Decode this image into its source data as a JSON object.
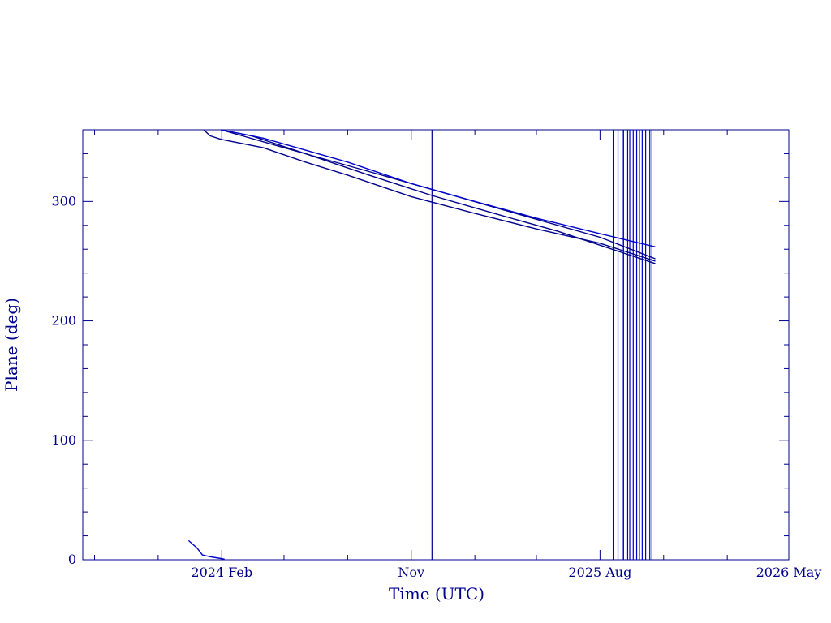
{
  "chart_data": {
    "type": "line",
    "xlabel": "Time (UTC)",
    "ylabel": "Plane (deg)",
    "xlim": [
      "2023-07-15",
      "2026-05-01"
    ],
    "ylim": [
      0,
      360
    ],
    "xticks": [
      {
        "label": "2024 Feb",
        "date": "2024-02-01"
      },
      {
        "label": "Nov",
        "date": "2024-11-01"
      },
      {
        "label": "2025 Aug",
        "date": "2025-08-01"
      },
      {
        "label": "2026 May",
        "date": "2026-05-01"
      }
    ],
    "yticks": [
      0,
      100,
      200,
      300
    ],
    "grid": false,
    "colors": {
      "axis": "#00008B",
      "series_1": "#00008B",
      "series_2": "#0000CD"
    },
    "series": [
      {
        "points": [
          [
            "2023-12-15",
            16
          ],
          [
            "2023-12-27",
            10
          ],
          [
            "2024-01-04",
            4
          ],
          [
            "2024-01-15",
            2.5
          ],
          [
            "2024-01-31",
            1
          ],
          [
            "2024-02-05",
            0.5
          ]
        ]
      },
      {
        "points": [
          [
            "2024-01-06",
            360
          ],
          [
            "2024-01-15",
            355
          ],
          [
            "2024-01-31",
            352
          ],
          [
            "2024-04-01",
            345
          ],
          [
            "2024-06-01",
            333
          ],
          [
            "2024-08-01",
            322
          ],
          [
            "2024-11-01",
            304
          ],
          [
            "2025-02-01",
            290
          ],
          [
            "2025-05-01",
            277
          ],
          [
            "2025-08-01",
            265
          ],
          [
            "2025-10-20",
            250
          ]
        ]
      },
      {
        "points": [
          [
            "2024-01-31",
            360
          ],
          [
            "2024-03-15",
            355
          ],
          [
            "2024-06-01",
            340
          ],
          [
            "2024-09-01",
            322
          ],
          [
            "2024-12-01",
            305
          ],
          [
            "2025-03-01",
            290
          ],
          [
            "2025-06-01",
            275
          ],
          [
            "2025-10-20",
            248
          ]
        ]
      },
      {
        "points": [
          [
            "2024-01-31",
            360
          ],
          [
            "2024-05-01",
            345
          ],
          [
            "2024-09-01",
            325
          ],
          [
            "2025-01-01",
            305
          ],
          [
            "2025-04-01",
            290
          ],
          [
            "2025-08-01",
            270
          ],
          [
            "2025-10-20",
            252
          ]
        ]
      },
      {
        "points": [
          [
            "2024-01-31",
            360
          ],
          [
            "2024-04-01",
            353
          ],
          [
            "2024-08-01",
            333
          ],
          [
            "2024-11-01",
            315
          ],
          [
            "2025-02-01",
            300
          ],
          [
            "2025-05-01",
            286
          ],
          [
            "2025-08-01",
            273
          ],
          [
            "2025-10-20",
            262
          ]
        ]
      }
    ],
    "vertical_lines": [
      {
        "date": "2024-12-01",
        "color": "#00008B"
      },
      {
        "date": "2025-08-20",
        "color": "#0000CD"
      },
      {
        "date": "2025-08-27",
        "color": "#0000CD"
      },
      {
        "date": "2025-09-02",
        "color": "#0000CD"
      },
      {
        "date": "2025-09-04",
        "color": "#0000CD"
      },
      {
        "date": "2025-09-10",
        "color": "#0000CD"
      },
      {
        "date": "2025-09-13",
        "color": "#0000CD"
      },
      {
        "date": "2025-09-18",
        "color": "#0000CD"
      },
      {
        "date": "2025-09-23",
        "color": "#0000CD"
      },
      {
        "date": "2025-09-27",
        "color": "#0000CD"
      },
      {
        "date": "2025-10-01",
        "color": "#0000CD"
      },
      {
        "date": "2025-10-06",
        "color": "#0000CD"
      },
      {
        "date": "2025-10-12",
        "color": "#0000CD"
      },
      {
        "date": "2025-10-15",
        "color": "#0000CD"
      }
    ]
  }
}
